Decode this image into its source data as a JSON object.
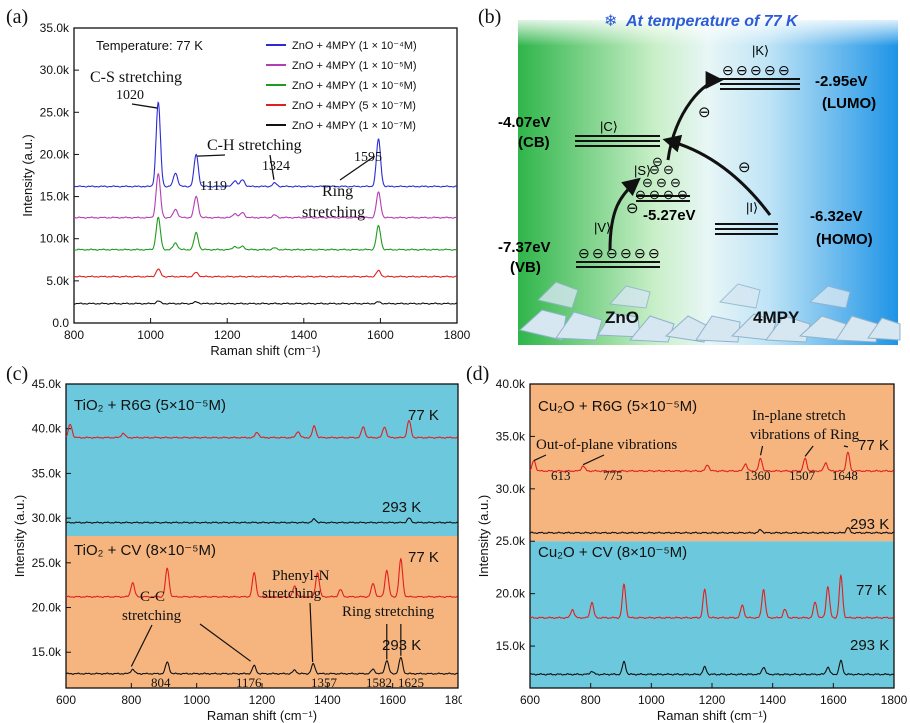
{
  "panels": {
    "a": {
      "label": "(a)"
    },
    "b": {
      "label": "(b)"
    },
    "c": {
      "label": "(c)"
    },
    "d": {
      "label": "(d)"
    }
  },
  "colors": {
    "blue": "#2b2bd6",
    "magenta": "#b43cb4",
    "green": "#1f9b1f",
    "red": "#e02020",
    "black": "#111111",
    "cyan_bg": "#6cc8dc",
    "orange_bg": "#f6b57e",
    "diagram_green": "#3fbf4c",
    "diagram_blue": "#3aa5e8"
  },
  "chart_data": [
    {
      "panel": "a",
      "type": "line",
      "xlabel": "Raman shift (cm⁻¹)",
      "ylabel": "Intensity (a.u.)",
      "xlim": [
        800,
        1800
      ],
      "ylim": [
        0,
        35000
      ],
      "xticks": [
        "800",
        "1000",
        "1200",
        "1400",
        "1600",
        "1800"
      ],
      "yticks": [
        "0.0",
        "5.0k",
        "10.0k",
        "15.0k",
        "20.0k",
        "25.0k",
        "30.0k",
        "35.0k"
      ],
      "note": "Temperature: 77 K",
      "legend_position": "top-right",
      "series": [
        {
          "name": "ZnO + 4MPY (1 × 10⁻⁴M)",
          "color": "#2b2bd6",
          "baseline": 16200,
          "peaks": [
            [
              1020,
              10000
            ],
            [
              1065,
              1600
            ],
            [
              1119,
              3800
            ],
            [
              1220,
              700
            ],
            [
              1240,
              800
            ],
            [
              1324,
              400
            ],
            [
              1595,
              5600
            ]
          ]
        },
        {
          "name": "ZnO + 4MPY (1 × 10⁻⁵M)",
          "color": "#b43cb4",
          "baseline": 12500,
          "peaks": [
            [
              1020,
              5200
            ],
            [
              1065,
              1000
            ],
            [
              1119,
              2500
            ],
            [
              1220,
              500
            ],
            [
              1240,
              600
            ],
            [
              1324,
              300
            ],
            [
              1595,
              3000
            ]
          ]
        },
        {
          "name": "ZnO + 4MPY (1 × 10⁻⁶M)",
          "color": "#1f9b1f",
          "baseline": 8700,
          "peaks": [
            [
              1020,
              3800
            ],
            [
              1065,
              800
            ],
            [
              1119,
              2000
            ],
            [
              1220,
              400
            ],
            [
              1240,
              400
            ],
            [
              1324,
              200
            ],
            [
              1595,
              2800
            ]
          ]
        },
        {
          "name": "ZnO + 4MPY (5 × 10⁻⁷M)",
          "color": "#e02020",
          "baseline": 5500,
          "peaks": [
            [
              1020,
              900
            ],
            [
              1119,
              500
            ],
            [
              1595,
              700
            ]
          ]
        },
        {
          "name": "ZnO + 4MPY (1 × 10⁻⁷M)",
          "color": "#111111",
          "baseline": 2300,
          "peaks": [
            [
              1020,
              300
            ],
            [
              1119,
              200
            ],
            [
              1595,
              200
            ]
          ]
        }
      ],
      "annotations": [
        {
          "text": "C-S stretching",
          "value": "1020"
        },
        {
          "text": "C-H stretching",
          "value": "1119"
        },
        {
          "text": "",
          "value": "1324"
        },
        {
          "text": "Ring",
          "text2": "stretching",
          "value": "1595"
        }
      ]
    },
    {
      "panel": "c",
      "type": "line",
      "xlabel": "Raman shift (cm⁻¹)",
      "ylabel": "Intensity (a.u.)",
      "xlim": [
        600,
        1800
      ],
      "ylim": [
        11000,
        45000
      ],
      "xticks": [
        "600",
        "800",
        "1000",
        "1200",
        "1400",
        "1600",
        "1800"
      ],
      "yticks": [
        "15.0k",
        "20.0k",
        "25.0k",
        "30.0k",
        "35.0k",
        "40.0k",
        "45.0k"
      ],
      "regions": [
        {
          "label": "TiO₂ + R6G (5×10⁻⁵M)",
          "from": 28000,
          "to": 45000,
          "color": "#6cc8dc"
        },
        {
          "label": "TiO₂ + CV (8×10⁻⁵M)",
          "from": 11000,
          "to": 28000,
          "color": "#f6b57e"
        }
      ],
      "series": [
        {
          "name": "77 K",
          "color": "#e02020",
          "baseline": 39000,
          "peaks": [
            [
              613,
              1500
            ],
            [
              775,
              500
            ],
            [
              1185,
              600
            ],
            [
              1310,
              700
            ],
            [
              1360,
              1300
            ],
            [
              1510,
              1200
            ],
            [
              1575,
              1200
            ],
            [
              1650,
              1900
            ]
          ]
        },
        {
          "name": "293 K",
          "color": "#111111",
          "baseline": 29500,
          "peaks": [
            [
              1360,
              400
            ],
            [
              1650,
              500
            ]
          ]
        },
        {
          "name": "77 K",
          "color": "#e02020",
          "baseline": 21200,
          "peaks": [
            [
              804,
              1600
            ],
            [
              910,
              3200
            ],
            [
              1176,
              2700
            ],
            [
              1300,
              1200
            ],
            [
              1370,
              2700
            ],
            [
              1440,
              800
            ],
            [
              1540,
              1500
            ],
            [
              1582,
              3000
            ],
            [
              1625,
              4200
            ]
          ]
        },
        {
          "name": "293 K",
          "color": "#111111",
          "baseline": 12600,
          "peaks": [
            [
              804,
              500
            ],
            [
              910,
              1300
            ],
            [
              1176,
              900
            ],
            [
              1300,
              400
            ],
            [
              1357,
              1100
            ],
            [
              1540,
              500
            ],
            [
              1582,
              1500
            ],
            [
              1625,
              1800
            ]
          ]
        }
      ],
      "annotations": [
        {
          "text": "C-C",
          "text2": "stretching",
          "values": [
            "804",
            "1176"
          ]
        },
        {
          "text": "Phenyl-N",
          "text2": "stretching",
          "value": "1357"
        },
        {
          "text": "Ring stretching",
          "values": [
            "1582",
            "1625"
          ]
        }
      ]
    },
    {
      "panel": "d",
      "type": "line",
      "xlabel": "Raman shift (cm⁻¹)",
      "ylabel": "Intensity (a.u.)",
      "xlim": [
        600,
        1800
      ],
      "ylim": [
        11000,
        40000
      ],
      "xticks": [
        "600",
        "800",
        "1000",
        "1200",
        "1400",
        "1600",
        "1800"
      ],
      "yticks": [
        "15.0k",
        "20.0k",
        "25.0k",
        "30.0k",
        "35.0k",
        "40.0k"
      ],
      "regions": [
        {
          "label": "Cu₂O + R6G (5×10⁻⁵M)",
          "from": 25000,
          "to": 40000,
          "color": "#f6b57e"
        },
        {
          "label": "Cu₂O + CV (8×10⁻⁵M)",
          "from": 11000,
          "to": 25000,
          "color": "#6cc8dc"
        }
      ],
      "series": [
        {
          "name": "77 K",
          "color": "#e02020",
          "baseline": 31700,
          "peaks": [
            [
              613,
              1000
            ],
            [
              775,
              500
            ],
            [
              1185,
              600
            ],
            [
              1310,
              700
            ],
            [
              1360,
              1200
            ],
            [
              1507,
              1200
            ],
            [
              1575,
              800
            ],
            [
              1648,
              1800
            ]
          ]
        },
        {
          "name": "293 K",
          "color": "#111111",
          "baseline": 25800,
          "peaks": [
            [
              1360,
              300
            ],
            [
              1648,
              500
            ]
          ]
        },
        {
          "name": "77 K",
          "color": "#e02020",
          "baseline": 17700,
          "peaks": [
            [
              740,
              800
            ],
            [
              804,
              1500
            ],
            [
              910,
              3200
            ],
            [
              1176,
              2700
            ],
            [
              1300,
              1200
            ],
            [
              1370,
              2700
            ],
            [
              1440,
              800
            ],
            [
              1540,
              1500
            ],
            [
              1582,
              3000
            ],
            [
              1625,
              4000
            ]
          ]
        },
        {
          "name": "293 K",
          "color": "#111111",
          "baseline": 12300,
          "peaks": [
            [
              804,
              300
            ],
            [
              910,
              1200
            ],
            [
              1176,
              700
            ],
            [
              1370,
              700
            ],
            [
              1582,
              700
            ],
            [
              1625,
              1300
            ]
          ]
        }
      ],
      "annotations": [
        {
          "text": "Out-of-plane vibrations",
          "values": [
            "613",
            "775"
          ]
        },
        {
          "text": "In-plane stretch",
          "text2": "vibrations of Ring",
          "values": [
            "1360",
            "1507",
            "1648"
          ]
        }
      ]
    }
  ],
  "diagram": {
    "title": "At temperature of 77 K",
    "cb_energy": "-4.07eV",
    "cb_label": "(CB)",
    "cb_state": "|C⟩",
    "vb_energy": "-7.37eV",
    "vb_label": "(VB)",
    "vb_state": "|V⟩",
    "s_energy": "-5.27eV",
    "s_state": "|S⟩",
    "lumo_energy": "-2.95eV",
    "lumo_label": "(LUMO)",
    "k_state": "|K⟩",
    "homo_energy": "-6.32eV",
    "homo_label": "(HOMO)",
    "i_state": "|I⟩",
    "zno": "ZnO",
    "mpy": "4MPY",
    "electron": "⊖"
  }
}
